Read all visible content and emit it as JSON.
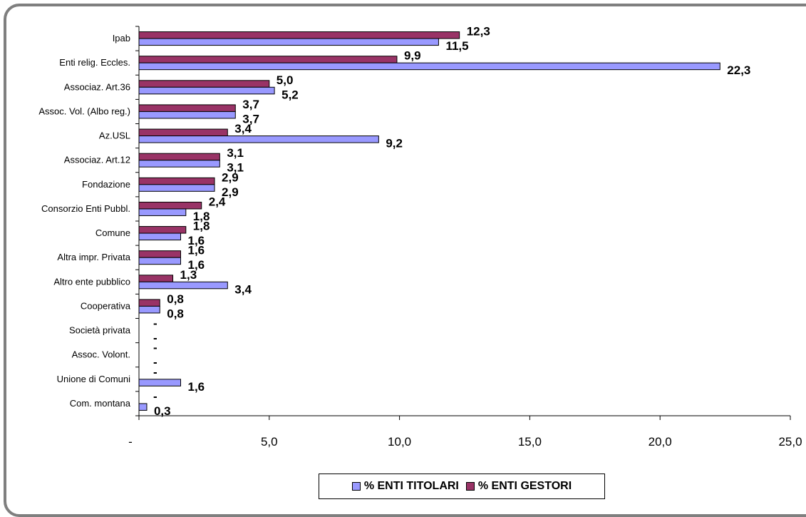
{
  "chart_data": {
    "type": "bar",
    "orientation": "horizontal",
    "categories": [
      "Ipab",
      "Enti relig. Eccles.",
      "Associaz. Art.36",
      "Assoc. Vol. (Albo reg.)",
      "Az.USL",
      "Associaz. Art.12",
      "Fondazione",
      "Consorzio Enti Pubbl.",
      "Comune",
      "Altra impr. Privata",
      "Altro ente pubblico",
      "Cooperativa",
      "Società privata",
      "Assoc. Volont.",
      "Unione di Comuni",
      "Com. montana"
    ],
    "series": [
      {
        "name": "% ENTI TITOLARI",
        "color": "#9999ff",
        "values": [
          11.5,
          22.3,
          5.2,
          3.7,
          9.2,
          3.1,
          2.9,
          1.8,
          1.6,
          1.6,
          3.4,
          0.8,
          0,
          0,
          1.6,
          0.3
        ],
        "labels": [
          "11,5",
          "22,3",
          "5,2",
          "3,7",
          "9,2",
          "3,1",
          "2,9",
          "1,8",
          "1,6",
          "1,6",
          "3,4",
          "0,8",
          "-",
          "-",
          "1,6",
          "0,3"
        ]
      },
      {
        "name": "% ENTI GESTORI",
        "color": "#993366",
        "values": [
          12.3,
          9.9,
          5.0,
          3.7,
          3.4,
          3.1,
          2.9,
          2.4,
          1.8,
          1.6,
          1.3,
          0.8,
          0,
          0,
          0,
          0
        ],
        "labels": [
          "12,3",
          "9,9",
          "5,0",
          "3,7",
          "3,4",
          "3,1",
          "2,9",
          "2,4",
          "1,8",
          "1,6",
          "1,3",
          "0,8",
          "-",
          "-",
          "-",
          "-"
        ]
      }
    ],
    "xlim": [
      0,
      25
    ],
    "xticks": [
      0,
      5,
      10,
      15,
      20,
      25
    ],
    "xtick_labels": [
      "-",
      "5,0",
      "10,0",
      "15,0",
      "20,0",
      "25,0"
    ],
    "legend_position": "bottom",
    "grid": false
  }
}
